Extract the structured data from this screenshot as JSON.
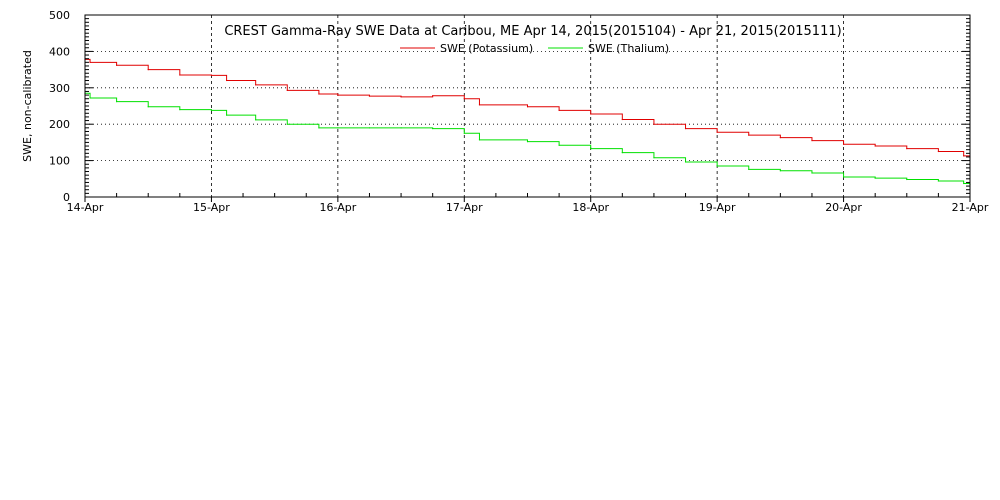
{
  "chart_data": {
    "type": "line",
    "title": "CREST Gamma-Ray SWE Data at Caribou, ME   Apr 14, 2015(2015104) - Apr 21, 2015(2015111)",
    "ylabel": "SWE, non-calibrated",
    "xlabel": "",
    "ylim": [
      0,
      500
    ],
    "yticks": [
      0,
      100,
      200,
      300,
      400,
      500
    ],
    "xlim": [
      0,
      7
    ],
    "xticks": [
      {
        "x": 0,
        "label": "14-Apr"
      },
      {
        "x": 1,
        "label": "15-Apr"
      },
      {
        "x": 2,
        "label": "16-Apr"
      },
      {
        "x": 3,
        "label": "17-Apr"
      },
      {
        "x": 4,
        "label": "18-Apr"
      },
      {
        "x": 5,
        "label": "19-Apr"
      },
      {
        "x": 6,
        "label": "20-Apr"
      },
      {
        "x": 7,
        "label": "21-Apr"
      }
    ],
    "grid": true,
    "legend": "top-center",
    "series": [
      {
        "name": "SWE (Potassium)",
        "color": "#e00000",
        "step": true,
        "x": [
          0,
          0.04,
          0.25,
          0.5,
          0.75,
          1.0,
          1.12,
          1.35,
          1.6,
          1.85,
          2.0,
          2.25,
          2.5,
          2.75,
          3.0,
          3.12,
          3.5,
          3.75,
          4.0,
          4.25,
          4.5,
          4.75,
          5.0,
          5.25,
          5.5,
          5.75,
          6.0,
          6.25,
          6.5,
          6.75,
          6.95,
          7.0
        ],
        "y": [
          378,
          370,
          362,
          350,
          335,
          334,
          320,
          308,
          293,
          283,
          280,
          277,
          275,
          278,
          270,
          253,
          248,
          238,
          228,
          213,
          200,
          188,
          178,
          170,
          163,
          155,
          145,
          140,
          133,
          125,
          113,
          110
        ]
      },
      {
        "name": "SWE (Thalium)",
        "color": "#00e000",
        "step": true,
        "x": [
          0,
          0.04,
          0.25,
          0.5,
          0.75,
          1.0,
          1.12,
          1.35,
          1.6,
          1.85,
          2.0,
          2.25,
          2.5,
          2.75,
          3.0,
          3.12,
          3.5,
          3.75,
          4.0,
          4.25,
          4.5,
          4.75,
          5.0,
          5.25,
          5.5,
          5.75,
          6.0,
          6.25,
          6.5,
          6.75,
          6.95,
          7.0
        ],
        "y": [
          285,
          272,
          262,
          248,
          240,
          238,
          225,
          212,
          200,
          190,
          190,
          190,
          190,
          188,
          175,
          157,
          152,
          142,
          133,
          122,
          108,
          96,
          85,
          76,
          72,
          66,
          55,
          52,
          48,
          44,
          37,
          35
        ]
      }
    ]
  }
}
